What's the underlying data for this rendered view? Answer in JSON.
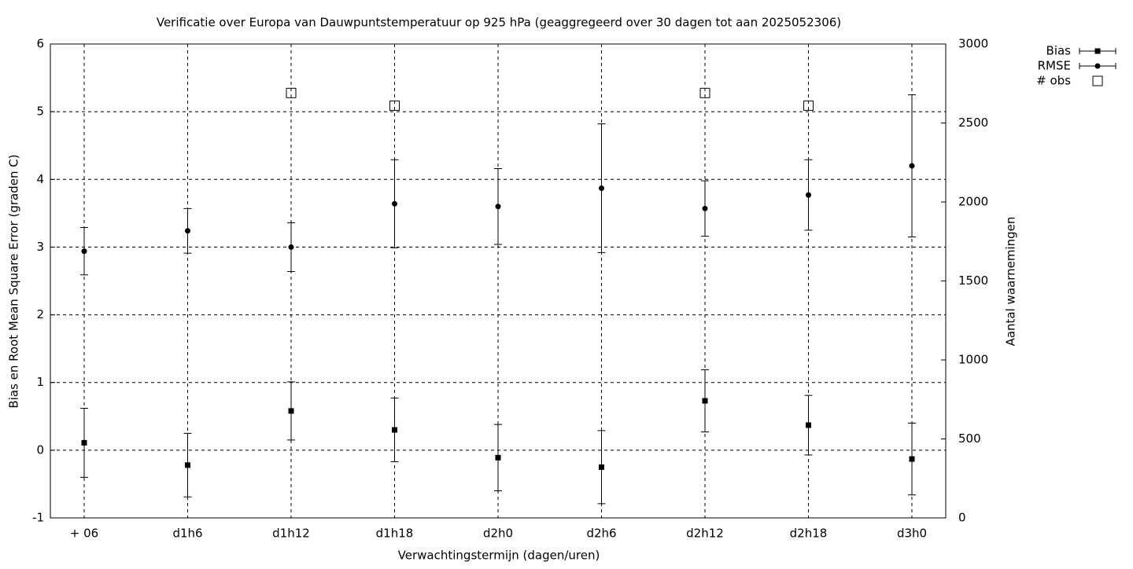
{
  "chart_data": {
    "type": "errorbar",
    "title": "Verificatie over Europa van Dauwpuntstemperatuur op 925 hPa (geaggregeerd over 30 dagen tot aan 2025052306)",
    "xlabel": "Verwachtingstermijn (dagen/uren)",
    "ylabel": "Bias en Root Mean Square Error (graden C)",
    "y2label": "Aantal waarnemingen",
    "categories": [
      "+ 06",
      "d1h6",
      "d1h12",
      "d1h18",
      "d2h0",
      "d2h6",
      "d2h12",
      "d2h18",
      "d3h0"
    ],
    "ylim": [
      -1,
      6
    ],
    "yticks": [
      -1,
      0,
      1,
      2,
      3,
      4,
      5,
      6
    ],
    "y2lim": [
      0,
      3000
    ],
    "y2ticks": [
      0,
      500,
      1000,
      1500,
      2000,
      2500,
      3000
    ],
    "grid": true,
    "legend": "outside-top-right",
    "series": [
      {
        "name": "Bias",
        "color": "#000000",
        "marker": "square",
        "values": [
          0.11,
          -0.22,
          0.58,
          0.3,
          -0.11,
          -0.25,
          0.73,
          0.37,
          -0.13
        ],
        "errors": [
          0.51,
          0.47,
          0.43,
          0.47,
          0.49,
          0.54,
          0.46,
          0.44,
          0.53
        ]
      },
      {
        "name": "RMSE",
        "color": "#000000",
        "marker": "circle",
        "values": [
          2.94,
          3.24,
          3.0,
          3.64,
          3.6,
          3.87,
          3.57,
          3.77,
          4.2
        ],
        "errors": [
          0.35,
          0.33,
          0.36,
          0.65,
          0.56,
          0.95,
          0.41,
          0.52,
          1.05
        ]
      },
      {
        "name": "# obs",
        "color": "#000000",
        "marker": "open-square",
        "axis": "y2",
        "values": [
          null,
          null,
          2690,
          2610,
          null,
          null,
          2690,
          2610,
          null
        ]
      }
    ]
  }
}
